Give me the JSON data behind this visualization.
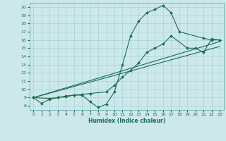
{
  "xlabel": "Humidex (Indice chaleur)",
  "xlim": [
    -0.5,
    23.5
  ],
  "ylim": [
    7.5,
    20.5
  ],
  "yticks": [
    8,
    9,
    10,
    11,
    12,
    13,
    14,
    15,
    16,
    17,
    18,
    19,
    20
  ],
  "xticks": [
    0,
    1,
    2,
    3,
    4,
    5,
    6,
    7,
    8,
    9,
    10,
    11,
    12,
    13,
    14,
    15,
    16,
    17,
    18,
    19,
    20,
    21,
    22,
    23
  ],
  "line_color": "#1a6b5a",
  "bg_color": "#cce8ea",
  "grid_color": "#a8d4d6",
  "line1_x": [
    0,
    1,
    2,
    3,
    4,
    5,
    6,
    7,
    8,
    9,
    10,
    11,
    12,
    13,
    14,
    15,
    16,
    17,
    18,
    21,
    22,
    23
  ],
  "line1_y": [
    9,
    8.3,
    8.8,
    9.0,
    9.1,
    9.3,
    9.3,
    8.5,
    7.8,
    8.2,
    9.7,
    13.0,
    16.5,
    18.3,
    19.3,
    19.7,
    20.2,
    19.3,
    17.0,
    16.2,
    16.0,
    16.0
  ],
  "line2_x": [
    0,
    2,
    3,
    4,
    5,
    6,
    7,
    9,
    10,
    11,
    12,
    13,
    14,
    15,
    16,
    17,
    19,
    20,
    21,
    22,
    23
  ],
  "line2_y": [
    9,
    8.9,
    9.0,
    9.2,
    9.3,
    9.4,
    9.5,
    9.7,
    10.5,
    11.5,
    12.3,
    13.2,
    14.5,
    15.0,
    15.5,
    16.5,
    15.0,
    15.0,
    14.5,
    16.1,
    16.0
  ],
  "line3_x": [
    0,
    23
  ],
  "line3_y": [
    9.0,
    15.2
  ],
  "line4_x": [
    0,
    23
  ],
  "line4_y": [
    9.0,
    15.8
  ]
}
